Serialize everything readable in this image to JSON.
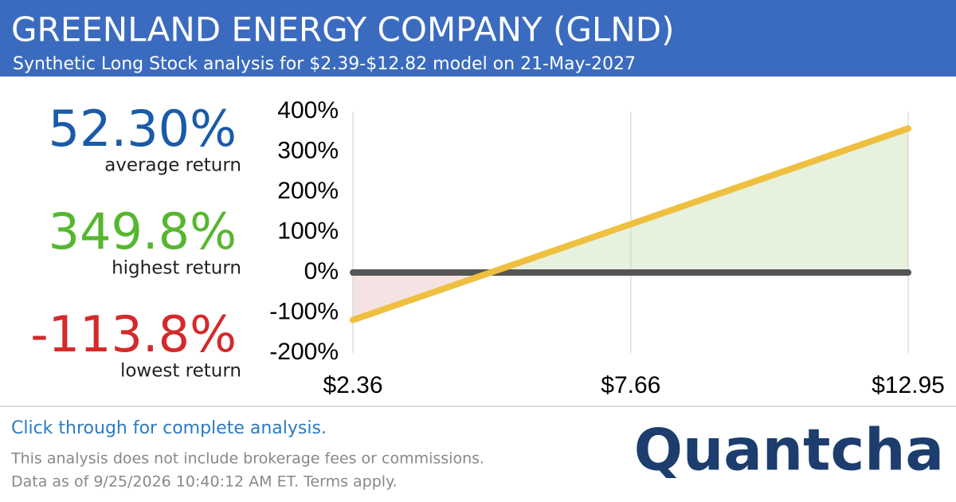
{
  "header": {
    "title": "GREENLAND ENERGY COMPANY (GLND)",
    "subtitle": "Synthetic Long Stock analysis for $2.39-$12.82 model on 21-May-2027"
  },
  "stats": [
    {
      "value": "52.30%",
      "label": "average return",
      "color": "#1a5aa8"
    },
    {
      "value": "349.8%",
      "label": "highest return",
      "color": "#55b72f"
    },
    {
      "value": "-113.8%",
      "label": "lowest return",
      "color": "#d42a2a"
    }
  ],
  "chart_data": {
    "type": "line",
    "x": [
      2.36,
      12.95
    ],
    "series": [
      {
        "name": "Synthetic Long Stock",
        "color": "#efc03f",
        "values": [
          -118,
          358
        ]
      }
    ],
    "hline": 0,
    "hline_color": "#555555",
    "positive_fill": "#e6f2de",
    "negative_fill": "#f5e3e3",
    "xlim": [
      2.36,
      12.95
    ],
    "xticks": [
      {
        "value": 2.36,
        "label": "$2.36"
      },
      {
        "value": 7.66,
        "label": "$7.66"
      },
      {
        "value": 12.95,
        "label": "$12.95"
      }
    ],
    "ylim": [
      -200,
      400
    ],
    "yticks": [
      {
        "value": -200,
        "label": "-200%"
      },
      {
        "value": -100,
        "label": "-100%"
      },
      {
        "value": 0,
        "label": "0%"
      },
      {
        "value": 100,
        "label": "100%"
      },
      {
        "value": 200,
        "label": "200%"
      },
      {
        "value": 300,
        "label": "300%"
      },
      {
        "value": 400,
        "label": "400%"
      }
    ],
    "grid": true
  },
  "footer": {
    "cta": "Click through for complete analysis.",
    "disclaimer": "This analysis does not include brokerage fees or commissions.",
    "timestamp": "Data as of 9/25/2026 10:40:12 AM ET. Terms apply.",
    "logo": "Quantcha"
  }
}
